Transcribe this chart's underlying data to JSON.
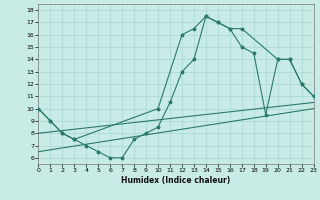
{
  "xlabel": "Humidex (Indice chaleur)",
  "bg_color": "#c8ebe6",
  "grid_color": "#a8d8d0",
  "line_color": "#2a7a6a",
  "line1_x": [
    0,
    1,
    2,
    3,
    4,
    5,
    6,
    7,
    8,
    9,
    10,
    11,
    12,
    13,
    14,
    15,
    16,
    17,
    18,
    19,
    20,
    21,
    22,
    23
  ],
  "line1_y": [
    10,
    9,
    8,
    7.5,
    7,
    6.5,
    6,
    6,
    7.5,
    8,
    8.5,
    10.5,
    13,
    14,
    17.5,
    17,
    16.5,
    15,
    14.5,
    9.5,
    14,
    14,
    12,
    11
  ],
  "line2_x": [
    0,
    1,
    2,
    3,
    10,
    12,
    13,
    14,
    15,
    16,
    17,
    20,
    21,
    22,
    23
  ],
  "line2_y": [
    10,
    9,
    8,
    7.5,
    10,
    16,
    16.5,
    17.5,
    17,
    16.5,
    16.5,
    14,
    14,
    12,
    11
  ],
  "line3_x": [
    0,
    23
  ],
  "line3_y": [
    8,
    10.5
  ],
  "line4_x": [
    0,
    23
  ],
  "line4_y": [
    6.5,
    10
  ],
  "xlim": [
    0,
    23
  ],
  "ylim": [
    5.5,
    18.5
  ],
  "yticks": [
    6,
    7,
    8,
    9,
    10,
    11,
    12,
    13,
    14,
    15,
    16,
    17,
    18
  ],
  "xticks": [
    0,
    1,
    2,
    3,
    4,
    5,
    6,
    7,
    8,
    9,
    10,
    11,
    12,
    13,
    14,
    15,
    16,
    17,
    18,
    19,
    20,
    21,
    22,
    23
  ]
}
